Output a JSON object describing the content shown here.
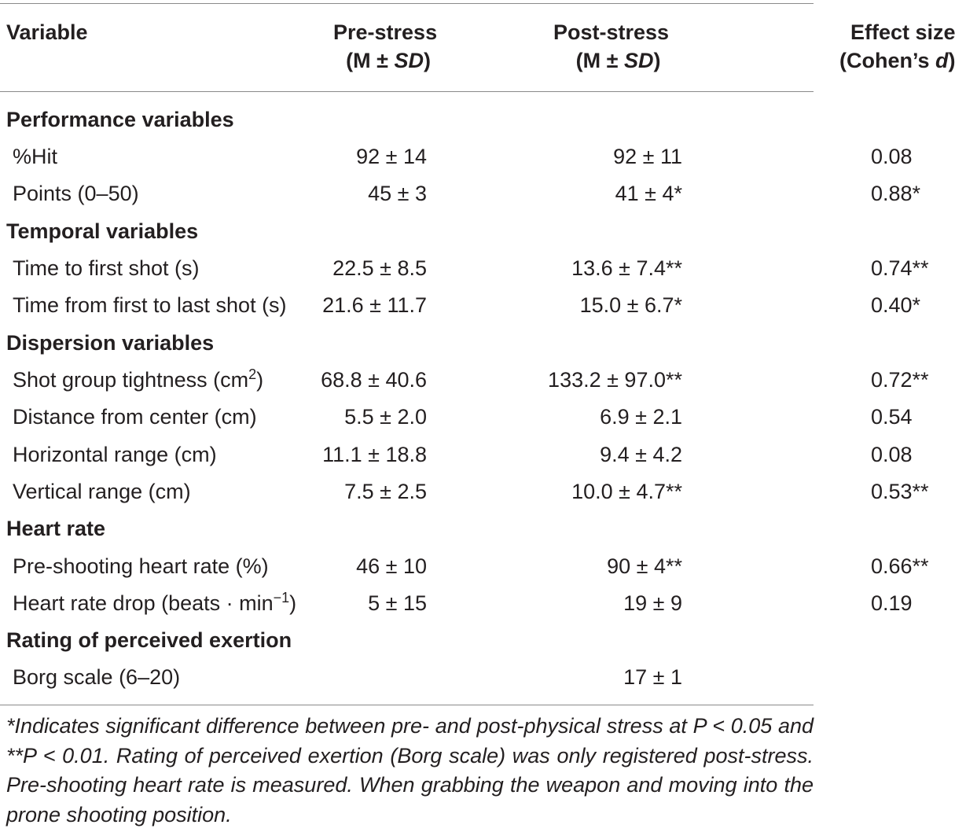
{
  "table": {
    "headers": {
      "variable": "Variable",
      "pre_line1": "Pre-stress",
      "pre_line2_prefix": "(M ± ",
      "pre_line2_sd": "SD",
      "pre_line2_suffix": ")",
      "post_line1": "Post-stress",
      "post_line2_prefix": "(M ± ",
      "post_line2_sd": "SD",
      "post_line2_suffix": ")",
      "effect_line1": "Effect size",
      "effect_line2_prefix": "(Cohen’s ",
      "effect_line2_d": "d",
      "effect_line2_suffix": ")"
    },
    "sections": {
      "performance": "Performance variables",
      "temporal": "Temporal variables",
      "dispersion": "Dispersion variables",
      "heart_rate": "Heart rate",
      "rpe": "Rating of perceived exertion"
    },
    "rows": {
      "hit": {
        "label": "%Hit",
        "pre": "92 ± 14",
        "post": "92 ± 11",
        "effect": "0.08"
      },
      "points": {
        "label": "Points (0–50)",
        "pre": "45 ± 3",
        "post": "41 ± 4*",
        "effect": "0.88*"
      },
      "first_shot": {
        "label": "Time to first shot (s)",
        "pre": "22.5 ± 8.5",
        "post": "13.6 ± 7.4**",
        "effect": "0.74**"
      },
      "first_last": {
        "label": "Time from first to last shot (s)",
        "pre": "21.6 ± 11.7",
        "post": "15.0 ± 6.7*",
        "effect": "0.40*"
      },
      "tightness": {
        "label_pre": "Shot group tightness (cm",
        "label_sup": "2",
        "label_post": ")",
        "pre": "68.8 ± 40.6",
        "post": "133.2 ± 97.0**",
        "effect": "0.72**"
      },
      "distance": {
        "label": "Distance from center (cm)",
        "pre": "5.5 ± 2.0",
        "post": "6.9 ± 2.1",
        "effect": "0.54"
      },
      "horizontal": {
        "label": "Horizontal range (cm)",
        "pre": "11.1 ± 18.8",
        "post": "9.4 ± 4.2",
        "effect": "0.08"
      },
      "vertical": {
        "label": "Vertical range (cm)",
        "pre": "7.5 ± 2.5",
        "post": "10.0 ± 4.7**",
        "effect": "0.53**"
      },
      "pre_hr": {
        "label": "Pre-shooting heart rate (%)",
        "pre": "46 ± 10",
        "post": "90 ± 4**",
        "effect": "0.66**"
      },
      "hr_drop": {
        "label_pre": "Heart rate drop (beats · min",
        "label_sup": "−1",
        "label_post": ")",
        "pre": "5 ± 15",
        "post": "19 ± 9",
        "effect": "0.19"
      },
      "borg": {
        "label": "Borg scale (6–20)",
        "pre": "",
        "post": "17 ± 1",
        "effect": ""
      }
    },
    "footnote": "*Indicates significant difference between pre- and post-physical stress at P < 0.05 and **P < 0.01. Rating of perceived exertion (Borg scale) was only registered post-stress. Pre-shooting heart rate is measured. When grabbing the weapon and moving into the prone shooting position."
  }
}
